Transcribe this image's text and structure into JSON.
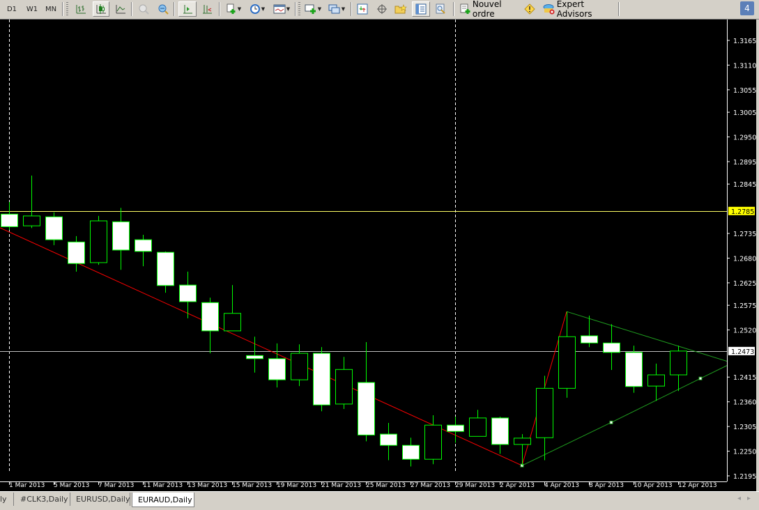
{
  "toolbar": {
    "periods": [
      "D1",
      "W1",
      "MN"
    ],
    "new_order_label": "Nouvel ordre",
    "expert_advisors_label": "Expert Advisors",
    "notification_count": "4",
    "icons": [
      "bar-chart-icon",
      "candlestick-icon",
      "line-chart-icon",
      "zoom-in-icon",
      "zoom-out-icon",
      "autoscroll-icon",
      "chart-shift-icon",
      "new-chart-icon",
      "periods-clock-icon",
      "templates-icon",
      "indicators-icon",
      "windows-icon",
      "market-watch-icon",
      "crosshair-icon",
      "navigator-icon",
      "data-window-icon",
      "strategy-tester-icon",
      "new-order-icon",
      "warning-icon",
      "expert-advisors-icon"
    ]
  },
  "tabs": [
    {
      "label": "ly",
      "active": false
    },
    {
      "label": "#CLK3,Daily",
      "active": false
    },
    {
      "label": "EURUSD,Daily",
      "active": false
    },
    {
      "label": "EURAUD,Daily",
      "active": true
    }
  ],
  "chart_data": {
    "type": "candlestick",
    "symbol": "EURAUD",
    "timeframe": "Daily",
    "colors": {
      "background": "#000000",
      "candle_outline": "#00ff00",
      "bear_body": "#ffffff",
      "bull_body": "#000000",
      "axis_text": "#ffffff",
      "trend_line": "#ff0000",
      "triangle": "#1f9e1f",
      "bid_line": "#c0c0c0",
      "level_line": "#ffff66"
    },
    "ylim": [
      1.2195,
      1.3165
    ],
    "y_ticks": [
      "1.3165",
      "1.3110",
      "1.3055",
      "1.3005",
      "1.2950",
      "1.2895",
      "1.2845",
      "1.2735",
      "1.2680",
      "1.2625",
      "1.2575",
      "1.2520",
      "1.2415",
      "1.2360",
      "1.2305",
      "1.2250",
      "1.2195"
    ],
    "x_tick_labels": [
      "1 Mar 2013",
      "5 Mar 2013",
      "7 Mar 2013",
      "11 Mar 2013",
      "13 Mar 2013",
      "15 Mar 2013",
      "19 Mar 2013",
      "21 Mar 2013",
      "25 Mar 2013",
      "27 Mar 2013",
      "29 Mar 2013",
      "2 Apr 2013",
      "4 Apr 2013",
      "8 Apr 2013",
      "10 Apr 2013",
      "12 Apr 2013"
    ],
    "candles": [
      {
        "date": "1 Mar 2013",
        "o": 1.2778,
        "h": 1.2805,
        "l": 1.2743,
        "c": 1.275
      },
      {
        "date": "4 Mar 2013",
        "o": 1.2752,
        "h": 1.2864,
        "l": 1.2747,
        "c": 1.2774
      },
      {
        "date": "5 Mar 2013",
        "o": 1.2772,
        "h": 1.2782,
        "l": 1.2709,
        "c": 1.2721
      },
      {
        "date": "6 Mar 2013",
        "o": 1.2716,
        "h": 1.2729,
        "l": 1.265,
        "c": 1.2668
      },
      {
        "date": "7 Mar 2013",
        "o": 1.267,
        "h": 1.2774,
        "l": 1.2665,
        "c": 1.2763
      },
      {
        "date": "8 Mar 2013",
        "o": 1.2761,
        "h": 1.2792,
        "l": 1.2654,
        "c": 1.2698
      },
      {
        "date": "11 Mar 2013",
        "o": 1.2721,
        "h": 1.2732,
        "l": 1.2662,
        "c": 1.2695
      },
      {
        "date": "12 Mar 2013",
        "o": 1.2693,
        "h": 1.2695,
        "l": 1.2603,
        "c": 1.2619
      },
      {
        "date": "13 Mar 2013",
        "o": 1.262,
        "h": 1.265,
        "l": 1.2546,
        "c": 1.2583
      },
      {
        "date": "14 Mar 2013",
        "o": 1.2581,
        "h": 1.2592,
        "l": 1.2468,
        "c": 1.2518
      },
      {
        "date": "15 Mar 2013",
        "o": 1.2518,
        "h": 1.262,
        "l": 1.2518,
        "c": 1.2557
      },
      {
        "date": "18 Mar 2013",
        "o": 1.2463,
        "h": 1.2505,
        "l": 1.2425,
        "c": 1.2456
      },
      {
        "date": "19 Mar 2013",
        "o": 1.2456,
        "h": 1.249,
        "l": 1.2392,
        "c": 1.2409
      },
      {
        "date": "20 Mar 2013",
        "o": 1.2409,
        "h": 1.2488,
        "l": 1.2395,
        "c": 1.2468
      },
      {
        "date": "21 Mar 2013",
        "o": 1.2468,
        "h": 1.2482,
        "l": 1.2339,
        "c": 1.2353
      },
      {
        "date": "22 Mar 2013",
        "o": 1.2355,
        "h": 1.246,
        "l": 1.2344,
        "c": 1.2432
      },
      {
        "date": "25 Mar 2013",
        "o": 1.2403,
        "h": 1.2493,
        "l": 1.2272,
        "c": 1.2286
      },
      {
        "date": "26 Mar 2013",
        "o": 1.2288,
        "h": 1.2313,
        "l": 1.223,
        "c": 1.2263
      },
      {
        "date": "27 Mar 2013",
        "o": 1.2263,
        "h": 1.228,
        "l": 1.2216,
        "c": 1.2232
      },
      {
        "date": "28 Mar 2013",
        "o": 1.2232,
        "h": 1.233,
        "l": 1.2221,
        "c": 1.2308
      },
      {
        "date": "29 Mar 2013",
        "o": 1.2308,
        "h": 1.2327,
        "l": 1.2269,
        "c": 1.2294
      },
      {
        "date": "1 Apr 2013",
        "o": 1.2283,
        "h": 1.2342,
        "l": 1.2283,
        "c": 1.2324
      },
      {
        "date": "2 Apr 2013",
        "o": 1.2324,
        "h": 1.2327,
        "l": 1.2244,
        "c": 1.2265
      },
      {
        "date": "3 Apr 2013",
        "o": 1.2265,
        "h": 1.2288,
        "l": 1.2218,
        "c": 1.2279
      },
      {
        "date": "4 Apr 2013",
        "o": 1.228,
        "h": 1.2418,
        "l": 1.223,
        "c": 1.239
      },
      {
        "date": "5 Apr 2013",
        "o": 1.239,
        "h": 1.2561,
        "l": 1.2369,
        "c": 1.2505
      },
      {
        "date": "8 Apr 2013",
        "o": 1.2507,
        "h": 1.2552,
        "l": 1.2482,
        "c": 1.2491
      },
      {
        "date": "9 Apr 2013",
        "o": 1.2491,
        "h": 1.2533,
        "l": 1.2431,
        "c": 1.247
      },
      {
        "date": "10 Apr 2013",
        "o": 1.247,
        "h": 1.2485,
        "l": 1.238,
        "c": 1.2394
      },
      {
        "date": "11 Apr 2013",
        "o": 1.2395,
        "h": 1.2445,
        "l": 1.2362,
        "c": 1.242
      },
      {
        "date": "12 Apr 2013",
        "o": 1.242,
        "h": 1.2485,
        "l": 1.2384,
        "c": 1.2473
      }
    ],
    "horizontal_lines": [
      {
        "price": "1.2785",
        "color": "#ffff66",
        "label_bg": "#ffff00"
      },
      {
        "price": "1.2473",
        "color": "#c0c0c0",
        "label_bg": "#ffffff"
      }
    ],
    "period_separators": [
      "1 Mar 2013",
      "29 Mar 2013"
    ],
    "trend_lines": [
      {
        "color": "#ff0000",
        "points": [
          [
            "28 Feb 2013",
            1.2761
          ],
          [
            "3 Apr 2013",
            1.2218
          ],
          [
            "5 Apr 2013",
            1.2561
          ]
        ]
      },
      {
        "color": "#1f9e1f",
        "extend_right": true,
        "points": [
          [
            "5 Apr 2013",
            1.2561
          ],
          [
            "12 Apr 2013",
            1.2484
          ]
        ]
      },
      {
        "color": "#1f9e1f",
        "extend_right": true,
        "markers": true,
        "points": [
          [
            "3 Apr 2013",
            1.2218
          ],
          [
            "9 Apr 2013",
            1.2314
          ],
          [
            "15 Apr 2013",
            1.2412
          ]
        ]
      }
    ]
  }
}
